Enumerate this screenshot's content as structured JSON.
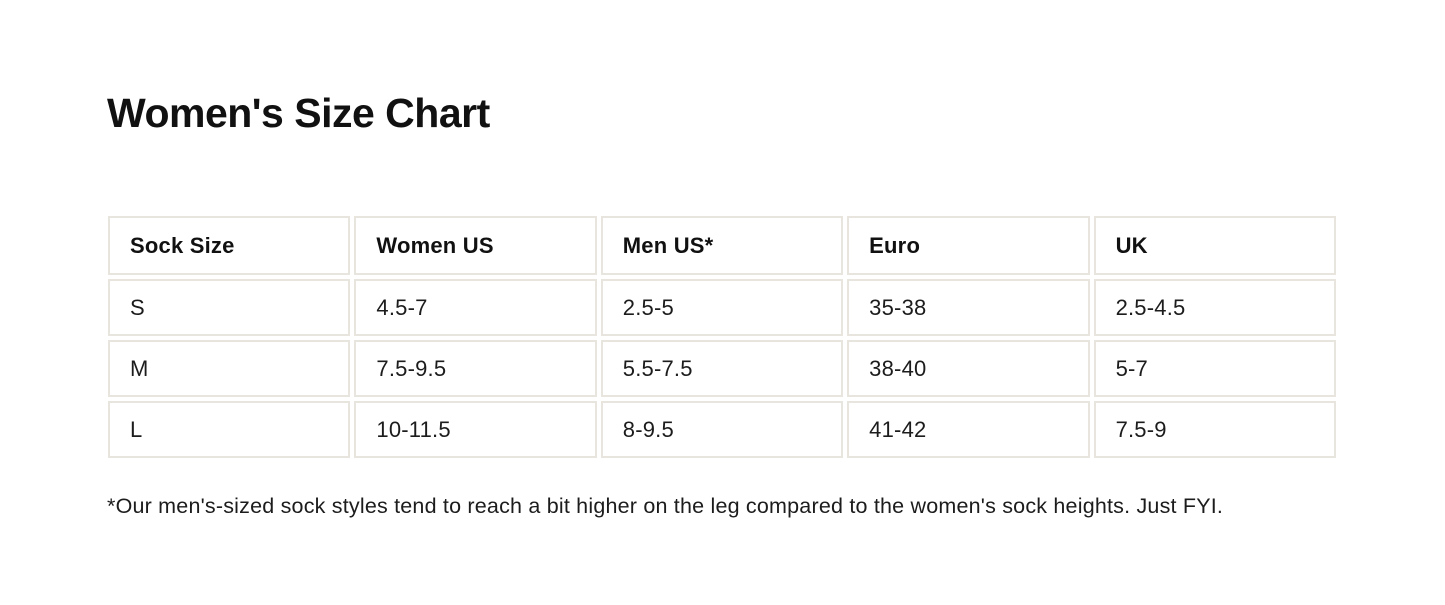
{
  "page_title": "Women's Size Chart",
  "size_chart": {
    "columns": [
      "Sock Size",
      "Women US",
      "Men US*",
      "Euro",
      "UK"
    ],
    "rows": [
      [
        "S",
        "4.5-7",
        "2.5-5",
        "35-38",
        "2.5-4.5"
      ],
      [
        "M",
        "7.5-9.5",
        "5.5-7.5",
        "38-40",
        "5-7"
      ],
      [
        "L",
        "10-11.5",
        "8-9.5",
        "41-42",
        "7.5-9"
      ]
    ]
  },
  "footnote": "*Our men's-sized sock styles tend to reach a bit higher on the leg compared to the women's sock heights. Just FYI.",
  "colors": {
    "background": "#ffffff",
    "table_border": "#e8e5df",
    "title_text": "#111111",
    "body_text": "#1c1c1c"
  }
}
